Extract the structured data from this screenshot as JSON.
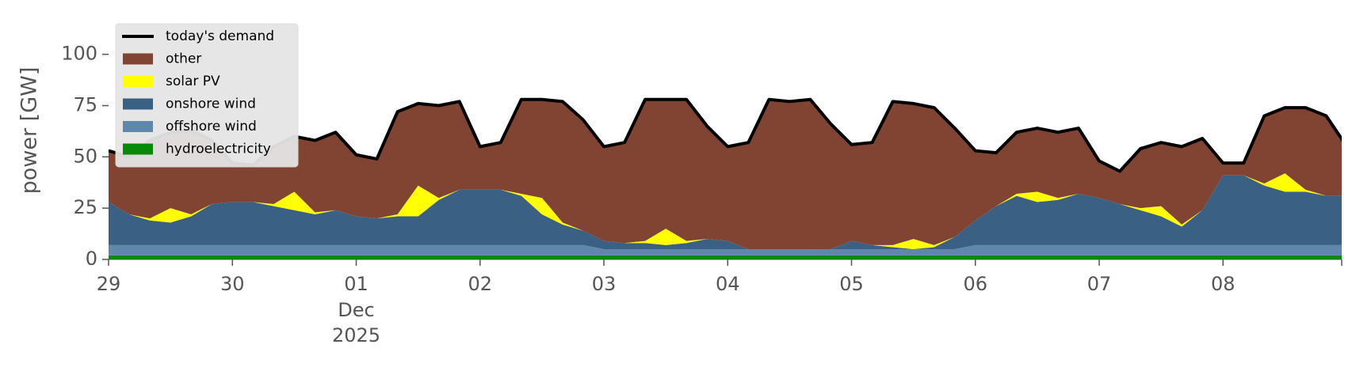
{
  "chart_data": {
    "type": "stacked_area",
    "ylabel": "power [GW]",
    "x": [
      "2025-11-29T00:00",
      "2025-11-29T04:00",
      "2025-11-29T08:00",
      "2025-11-29T12:00",
      "2025-11-29T16:00",
      "2025-11-29T20:00",
      "2025-11-30T00:00",
      "2025-11-30T04:00",
      "2025-11-30T08:00",
      "2025-11-30T12:00",
      "2025-11-30T16:00",
      "2025-11-30T20:00",
      "2025-12-01T00:00",
      "2025-12-01T04:00",
      "2025-12-01T08:00",
      "2025-12-01T12:00",
      "2025-12-01T16:00",
      "2025-12-01T20:00",
      "2025-12-02T00:00",
      "2025-12-02T04:00",
      "2025-12-02T08:00",
      "2025-12-02T12:00",
      "2025-12-02T16:00",
      "2025-12-02T20:00",
      "2025-12-03T00:00",
      "2025-12-03T04:00",
      "2025-12-03T08:00",
      "2025-12-03T12:00",
      "2025-12-03T16:00",
      "2025-12-03T20:00",
      "2025-12-04T00:00",
      "2025-12-04T04:00",
      "2025-12-04T08:00",
      "2025-12-04T12:00",
      "2025-12-04T16:00",
      "2025-12-04T20:00",
      "2025-12-05T00:00",
      "2025-12-05T04:00",
      "2025-12-05T08:00",
      "2025-12-05T12:00",
      "2025-12-05T16:00",
      "2025-12-05T20:00",
      "2025-12-06T00:00",
      "2025-12-06T04:00",
      "2025-12-06T08:00",
      "2025-12-06T12:00",
      "2025-12-06T16:00",
      "2025-12-06T20:00",
      "2025-12-07T00:00",
      "2025-12-07T04:00",
      "2025-12-07T08:00",
      "2025-12-07T12:00",
      "2025-12-07T16:00",
      "2025-12-07T20:00",
      "2025-12-08T00:00",
      "2025-12-08T04:00",
      "2025-12-08T08:00",
      "2025-12-08T12:00",
      "2025-12-08T16:00",
      "2025-12-08T20:00",
      "2025-12-09T00:00"
    ],
    "series": [
      {
        "name": "hydroelectricity",
        "color": "#088a08",
        "values": [
          2,
          2,
          2,
          2,
          2,
          2,
          2,
          2,
          2,
          2,
          2,
          2,
          2,
          2,
          2,
          2,
          2,
          2,
          2,
          2,
          2,
          2,
          2,
          2,
          2,
          2,
          2,
          2,
          2,
          2,
          2,
          2,
          2,
          2,
          2,
          2,
          2,
          2,
          2,
          2,
          2,
          2,
          2,
          2,
          2,
          2,
          2,
          2,
          2,
          2,
          2,
          2,
          2,
          2,
          2,
          2,
          2,
          2,
          2,
          2,
          2
        ]
      },
      {
        "name": "offshore wind",
        "color": "#5f86ab",
        "values": [
          5,
          5,
          5,
          5,
          5,
          5,
          5,
          5,
          5,
          5,
          5,
          5,
          5,
          5,
          5,
          5,
          5,
          5,
          5,
          5,
          5,
          5,
          5,
          5,
          3,
          3,
          3,
          3,
          3,
          3,
          3,
          3,
          3,
          3,
          3,
          3,
          3,
          3,
          3,
          3,
          3,
          3,
          5,
          5,
          5,
          5,
          5,
          5,
          5,
          5,
          5,
          5,
          5,
          5,
          5,
          5,
          5,
          5,
          5,
          5,
          5
        ]
      },
      {
        "name": "onshore wind",
        "color": "#3a6183",
        "values": [
          21,
          15,
          12,
          11,
          14,
          20,
          21,
          21,
          19,
          17,
          15,
          17,
          14,
          13,
          14,
          14,
          22,
          27,
          27,
          27,
          24,
          15,
          10,
          7,
          4,
          3,
          3,
          2,
          3,
          5,
          4,
          0,
          0,
          0,
          0,
          0,
          4,
          2,
          1,
          0,
          1,
          6,
          12,
          19,
          24,
          21,
          22,
          25,
          23,
          20,
          17,
          14,
          9,
          17,
          34,
          34,
          29,
          26,
          26,
          24,
          24
        ]
      },
      {
        "name": "solar PV",
        "color": "#ffff00",
        "values": [
          0,
          0,
          1,
          7,
          1,
          0,
          0,
          0,
          1,
          9,
          1,
          0,
          0,
          0,
          1,
          15,
          1,
          0,
          0,
          0,
          1,
          8,
          1,
          0,
          0,
          0,
          1,
          8,
          1,
          0,
          0,
          0,
          0,
          0,
          0,
          0,
          0,
          0,
          1,
          5,
          1,
          0,
          0,
          0,
          1,
          5,
          1,
          0,
          0,
          0,
          1,
          5,
          1,
          0,
          0,
          0,
          1,
          9,
          1,
          0,
          0
        ]
      },
      {
        "name": "other",
        "color": "#814433",
        "values": [
          25,
          28,
          38,
          37,
          41,
          31,
          19,
          18,
          28,
          27,
          35,
          38,
          30,
          29,
          50,
          40,
          45,
          43,
          21,
          23,
          46,
          48,
          59,
          54,
          46,
          49,
          69,
          63,
          69,
          55,
          46,
          52,
          73,
          72,
          73,
          61,
          47,
          50,
          70,
          66,
          67,
          53,
          34,
          26,
          30,
          31,
          32,
          32,
          18,
          16,
          29,
          31,
          38,
          35,
          6,
          6,
          33,
          32,
          40,
          39,
          24
        ]
      }
    ],
    "line": {
      "name": "today's demand",
      "color": "#000000",
      "values": [
        53,
        50,
        58,
        62,
        63,
        58,
        47,
        46,
        55,
        60,
        58,
        62,
        51,
        49,
        72,
        76,
        75,
        77,
        55,
        57,
        78,
        78,
        77,
        68,
        55,
        57,
        78,
        78,
        78,
        65,
        55,
        57,
        78,
        77,
        78,
        66,
        56,
        57,
        77,
        76,
        74,
        64,
        53,
        52,
        62,
        64,
        62,
        64,
        48,
        43,
        54,
        57,
        55,
        59,
        47,
        47,
        70,
        74,
        74,
        70,
        55
      ]
    },
    "xlim": [
      "2025-11-29T00:00",
      "2025-12-08T23:00"
    ],
    "xticks": [
      {
        "value": "2025-11-29T00:00",
        "label": "29"
      },
      {
        "value": "2025-11-30T00:00",
        "label": "30"
      },
      {
        "value": "2025-12-01T00:00",
        "label": "01"
      },
      {
        "value": "2025-12-02T00:00",
        "label": "02"
      },
      {
        "value": "2025-12-03T00:00",
        "label": "03"
      },
      {
        "value": "2025-12-04T00:00",
        "label": "04"
      },
      {
        "value": "2025-12-05T00:00",
        "label": "05"
      },
      {
        "value": "2025-12-06T00:00",
        "label": "06"
      },
      {
        "value": "2025-12-07T00:00",
        "label": "07"
      },
      {
        "value": "2025-12-08T00:00",
        "label": "08"
      }
    ],
    "x_offset_labels": [
      "Dec",
      "2025"
    ],
    "ylim": [
      0,
      118
    ],
    "yticks": [
      0,
      25,
      50,
      75,
      100
    ],
    "legend": "upper left"
  }
}
